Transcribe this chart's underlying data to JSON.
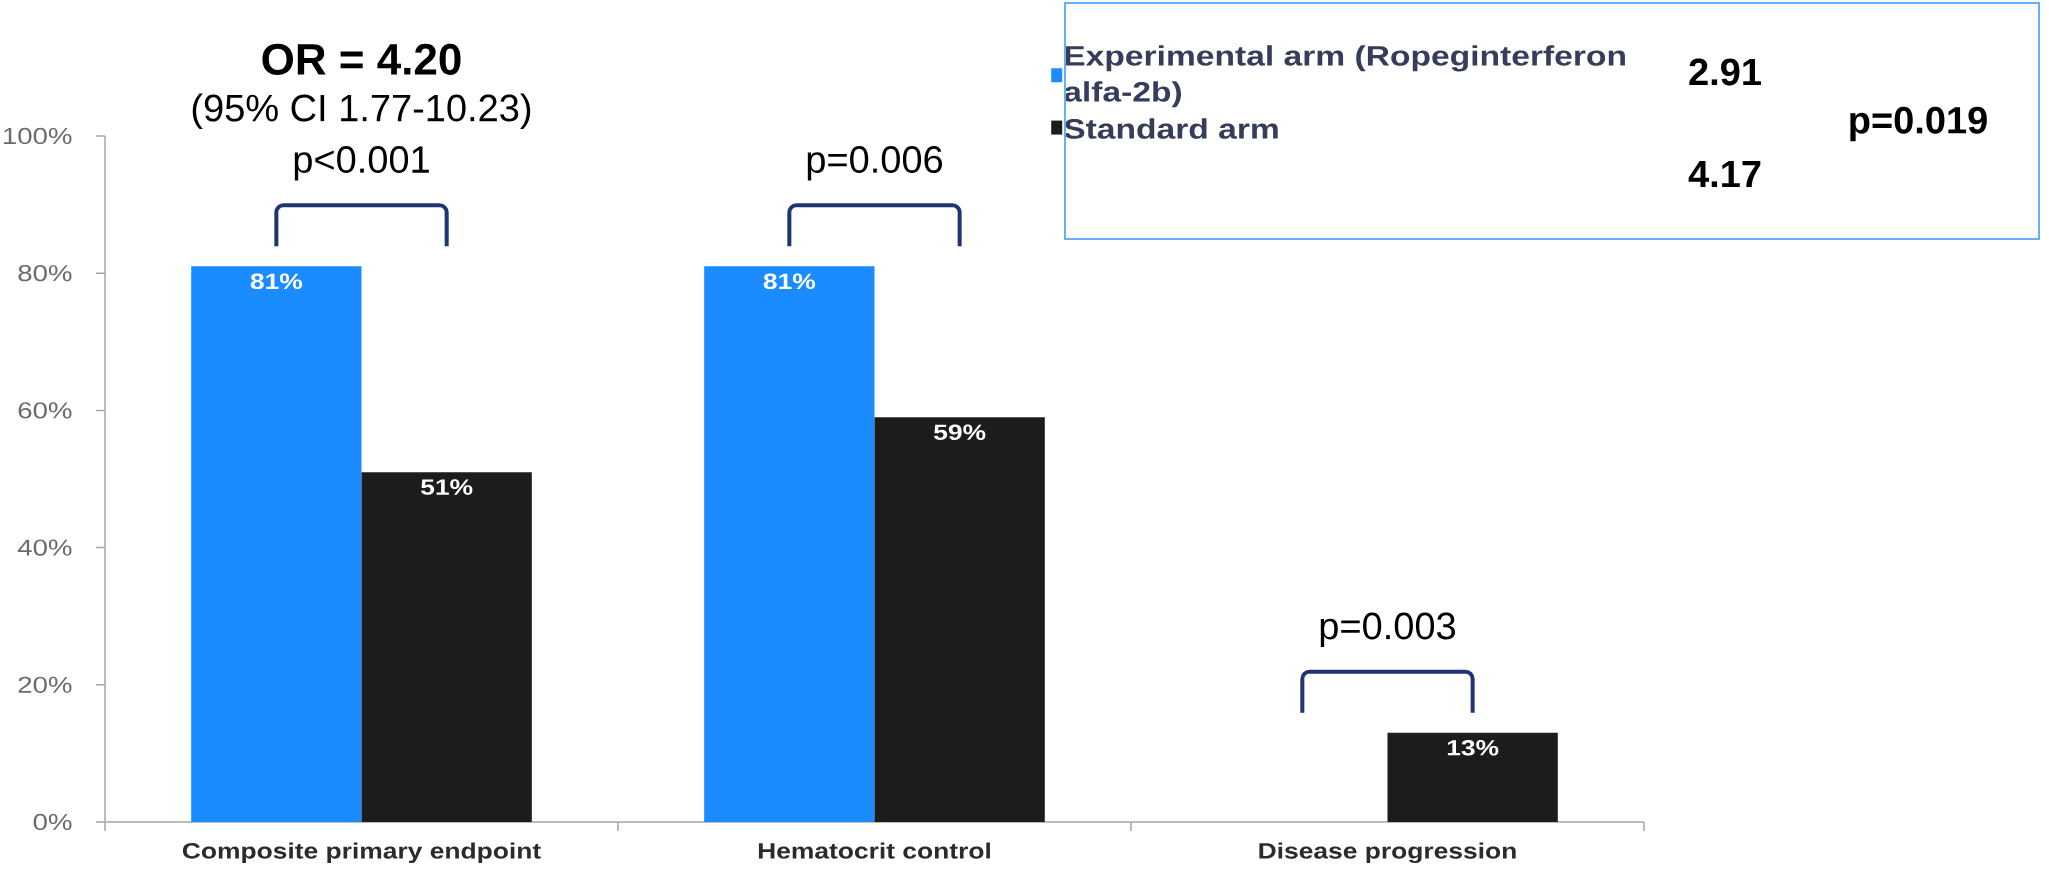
{
  "chart_data": {
    "type": "bar",
    "categories": [
      "Composite primary endpoint",
      "Hematocrit control",
      "Disease progression"
    ],
    "series": [
      {
        "name": "Experimental arm (Ropeginterferon alfa-2b)",
        "color": "#1a8cff",
        "values": [
          81,
          81,
          null
        ],
        "value_labels": [
          "81%",
          "81%",
          null
        ]
      },
      {
        "name": "Standard arm",
        "color": "#1c1c1c",
        "values": [
          51,
          59,
          13
        ],
        "value_labels": [
          "51%",
          "59%",
          "13%"
        ]
      }
    ],
    "ylim": [
      0,
      100
    ],
    "yticks": [
      {
        "value": 0,
        "label": "0%"
      },
      {
        "value": 20,
        "label": "20%"
      },
      {
        "value": 40,
        "label": "40%"
      },
      {
        "value": 60,
        "label": "60%"
      },
      {
        "value": 80,
        "label": "80%"
      },
      {
        "value": 100,
        "label": "100%"
      }
    ],
    "legend": "top right",
    "annotations": [
      "OR = 4.20",
      "(95% CI 1.77-10.23)",
      "p<0.001",
      "p=0.006",
      "p=0.003",
      "2.91",
      "p=0.019",
      "4.17"
    ]
  }
}
